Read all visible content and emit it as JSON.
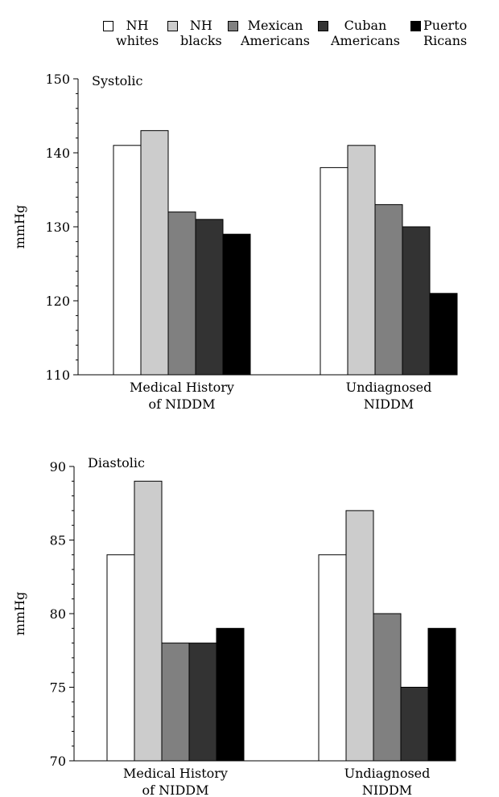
{
  "legend": {
    "items": [
      {
        "line1": "NH",
        "line2": "whites",
        "color": "#ffffff"
      },
      {
        "line1": "NH",
        "line2": "blacks",
        "color": "#cccccc"
      },
      {
        "line1": "Mexican",
        "line2": "Americans",
        "color": "#808080"
      },
      {
        "line1": "Cuban",
        "line2": "Americans",
        "color": "#333333"
      },
      {
        "line1": "Puerto",
        "line2": "Ricans",
        "color": "#000000"
      }
    ]
  },
  "chart_data": [
    {
      "type": "bar",
      "title": "Systolic",
      "ylabel": "mmHg",
      "ylim": [
        110,
        150
      ],
      "yticks": [
        110,
        120,
        130,
        140,
        150
      ],
      "categories": [
        {
          "line1": "Medical History",
          "line2": "of NIDDM"
        },
        {
          "line1": "Undiagnosed",
          "line2": "NIDDM"
        }
      ],
      "series": [
        {
          "name": "NH whites",
          "values": [
            141,
            138
          ]
        },
        {
          "name": "NH blacks",
          "values": [
            143,
            141
          ]
        },
        {
          "name": "Mexican Americans",
          "values": [
            132,
            133
          ]
        },
        {
          "name": "Cuban Americans",
          "values": [
            131,
            130
          ]
        },
        {
          "name": "Puerto Ricans",
          "values": [
            129,
            121
          ]
        }
      ]
    },
    {
      "type": "bar",
      "title": "Diastolic",
      "ylabel": "mmHg",
      "ylim": [
        70,
        90
      ],
      "yticks": [
        70,
        75,
        80,
        85,
        90
      ],
      "categories": [
        {
          "line1": "Medical History",
          "line2": "of NIDDM"
        },
        {
          "line1": "Undiagnosed",
          "line2": "NIDDM"
        }
      ],
      "series": [
        {
          "name": "NH whites",
          "values": [
            84,
            84
          ]
        },
        {
          "name": "NH blacks",
          "values": [
            89,
            87
          ]
        },
        {
          "name": "Mexican Americans",
          "values": [
            78,
            80
          ]
        },
        {
          "name": "Cuban Americans",
          "values": [
            78,
            75
          ]
        },
        {
          "name": "Puerto Ricans",
          "values": [
            79,
            79
          ]
        }
      ]
    }
  ]
}
